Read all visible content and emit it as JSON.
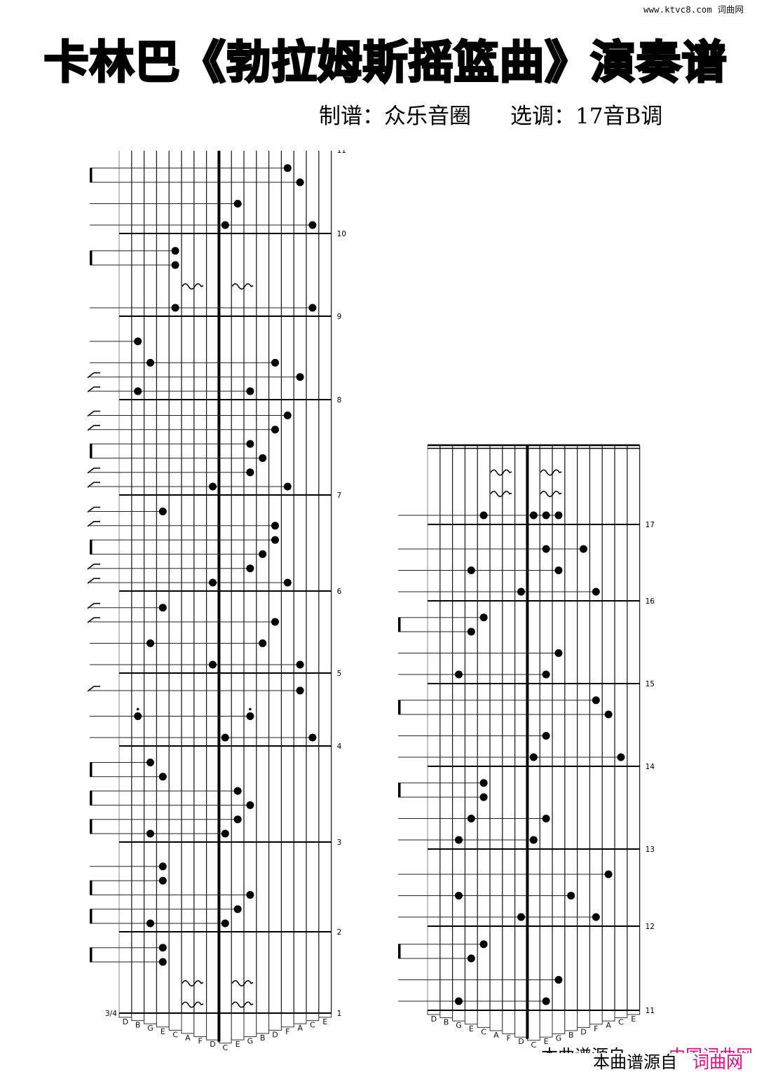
{
  "header": {
    "site": "www.ktvc8.com 词曲网",
    "title": "卡林巴《勃拉姆斯摇篮曲》演奏谱",
    "arranger": "制谱：众乐音圈",
    "key": "选调：17音B调"
  },
  "watermark": {
    "source_prefix": "本曲谱源自",
    "source_site_cut": "中国词曲网",
    "source_site": "词曲网",
    "pink": "#e5097f"
  },
  "time_signature": "3/4",
  "keys": [
    {
      "label": "D",
      "pitch": "D6"
    },
    {
      "label": "B",
      "pitch": "B5"
    },
    {
      "label": "G",
      "pitch": "G5"
    },
    {
      "label": "E",
      "pitch": "E5"
    },
    {
      "label": "C",
      "pitch": "C5"
    },
    {
      "label": "A",
      "pitch": "A4"
    },
    {
      "label": "F",
      "pitch": "F4"
    },
    {
      "label": "D",
      "pitch": "D4"
    },
    {
      "label": "C",
      "pitch": "C4"
    },
    {
      "label": "E",
      "pitch": "E4"
    },
    {
      "label": "G",
      "pitch": "G4"
    },
    {
      "label": "B",
      "pitch": "B4"
    },
    {
      "label": "D",
      "pitch": "D5"
    },
    {
      "label": "F",
      "pitch": "F5"
    },
    {
      "label": "A",
      "pitch": "A5"
    },
    {
      "label": "C",
      "pitch": "C6"
    },
    {
      "label": "E",
      "pitch": "E6"
    }
  ],
  "staves": [
    {
      "continues_to": "11",
      "measures": [
        {
          "number": "1",
          "events": [
            {
              "rest": true,
              "d": "q"
            },
            {
              "rest": true,
              "d": "q"
            },
            {
              "n": "E5",
              "d": "e",
              "f": "beam"
            },
            {
              "n": "E5",
              "d": "e",
              "f": "beam"
            }
          ]
        },
        {
          "number": "2",
          "events": [
            {
              "n": "G5 C4",
              "d": "e",
              "f": "beam"
            },
            {
              "n": "E4",
              "d": "e",
              "f": "beam"
            },
            {
              "n": "G4",
              "d": "e",
              "f": "beam"
            },
            {
              "n": "E5",
              "d": "e",
              "f": "beam"
            },
            {
              "n": "E5",
              "d": "q"
            }
          ]
        },
        {
          "number": "3",
          "events": [
            {
              "n": "G5 C4",
              "d": "e",
              "f": "beam"
            },
            {
              "n": "E4",
              "d": "e",
              "f": "beam"
            },
            {
              "n": "G4",
              "d": "e",
              "f": "beam"
            },
            {
              "n": "E4",
              "d": "e",
              "f": "beam"
            },
            {
              "n": "E5",
              "d": "e",
              "f": "beam"
            },
            {
              "n": "G5",
              "d": "e",
              "f": "beam"
            }
          ]
        },
        {
          "number": "4",
          "events": [
            {
              "n": "C4 C6",
              "d": "q"
            },
            {
              "n": "B5 G4",
              "d": "dq"
            },
            {
              "n": "A5",
              "d": "e",
              "f": "hook"
            }
          ]
        },
        {
          "number": "5",
          "events": [
            {
              "n": "D4 A5",
              "d": "q"
            },
            {
              "n": "G5 B4",
              "d": "q"
            },
            {
              "n": "D5",
              "d": "e",
              "f": "hook"
            },
            {
              "n": "E5",
              "d": "e",
              "f": "hook"
            }
          ]
        },
        {
          "number": "6",
          "events": [
            {
              "n": "D4 F5",
              "d": "e",
              "f": "hook"
            },
            {
              "n": "G4",
              "d": "e",
              "f": "hook"
            },
            {
              "n": "B4",
              "d": "e",
              "f": "beam"
            },
            {
              "n": "D5",
              "d": "e",
              "f": "beam"
            },
            {
              "n": "D5",
              "d": "e",
              "f": "hook"
            },
            {
              "n": "E5",
              "d": "e",
              "f": "hook"
            }
          ]
        },
        {
          "number": "7",
          "events": [
            {
              "n": "D4 F5",
              "d": "e",
              "f": "hook"
            },
            {
              "n": "G4",
              "d": "e",
              "f": "hook"
            },
            {
              "n": "B4",
              "d": "e",
              "f": "beam"
            },
            {
              "n": "G4",
              "d": "e",
              "f": "beam"
            },
            {
              "n": "D5",
              "d": "e",
              "f": "hook"
            },
            {
              "n": "F5",
              "d": "e",
              "f": "hook"
            }
          ]
        },
        {
          "number": "8",
          "events": [
            {
              "n": "B5 G4",
              "d": "e",
              "f": "hook"
            },
            {
              "n": "A5",
              "d": "e",
              "f": "hook"
            },
            {
              "n": "G5 D5",
              "d": "q"
            },
            {
              "n": "B5",
              "d": "q"
            }
          ]
        },
        {
          "number": "9",
          "events": [
            {
              "n": "C5 C6",
              "d": "q"
            },
            {
              "rest": true,
              "d": "q"
            },
            {
              "n": "C5",
              "d": "e",
              "f": "beam"
            },
            {
              "n": "C5",
              "d": "e",
              "f": "beam"
            }
          ]
        },
        {
          "number": "10",
          "events": [
            {
              "n": "C4 C6",
              "d": "q"
            },
            {
              "n": "E4",
              "d": "q"
            },
            {
              "n": "A5",
              "d": "e",
              "f": "beam"
            },
            {
              "n": "F5",
              "d": "e",
              "f": "beam"
            }
          ]
        }
      ]
    },
    {
      "measures": [
        {
          "number": "11",
          "events": [
            {
              "n": "G5 E4",
              "d": "q"
            },
            {
              "n": "G4",
              "d": "q"
            },
            {
              "n": "E5",
              "d": "e",
              "f": "beam"
            },
            {
              "n": "C5",
              "d": "e",
              "f": "beam"
            }
          ]
        },
        {
          "number": "12",
          "events": [
            {
              "n": "D4 F5",
              "d": "q"
            },
            {
              "n": "G5 B4",
              "d": "q"
            },
            {
              "n": "A5",
              "d": "q"
            }
          ]
        },
        {
          "number": "13",
          "events": [
            {
              "n": "G5 C4",
              "d": "q"
            },
            {
              "n": "E5 E4",
              "d": "q"
            },
            {
              "n": "C5",
              "d": "e",
              "f": "beam"
            },
            {
              "n": "C5",
              "d": "e",
              "f": "beam"
            }
          ]
        },
        {
          "number": "14",
          "events": [
            {
              "n": "C4 C6",
              "d": "q"
            },
            {
              "n": "E4",
              "d": "q"
            },
            {
              "n": "A5",
              "d": "e",
              "f": "beam"
            },
            {
              "n": "F5",
              "d": "e",
              "f": "beam"
            }
          ]
        },
        {
          "number": "15",
          "events": [
            {
              "n": "G5 E4",
              "d": "q"
            },
            {
              "n": "G4",
              "d": "q"
            },
            {
              "n": "E5",
              "d": "e",
              "f": "beam"
            },
            {
              "n": "C5",
              "d": "e",
              "f": "beam"
            }
          ]
        },
        {
          "number": "16",
          "events": [
            {
              "n": "D4 F5",
              "d": "q"
            },
            {
              "n": "E5 G4",
              "d": "q"
            },
            {
              "n": "E4 D5",
              "d": "q"
            }
          ]
        },
        {
          "number": "17",
          "events": [
            {
              "n": "C5 C4 E4 G4",
              "d": "q"
            },
            {
              "rest": true,
              "d": "q"
            },
            {
              "rest": true,
              "d": "q"
            }
          ]
        }
      ]
    }
  ]
}
